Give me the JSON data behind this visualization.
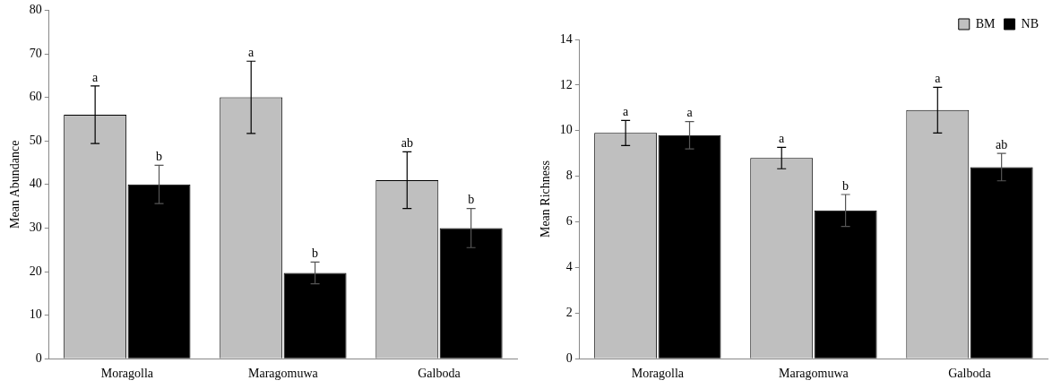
{
  "chart_data": [
    {
      "type": "bar",
      "ylabel": "Mean Abundance",
      "categories": [
        "Moragolla",
        "Maragomuwa",
        "Galboda"
      ],
      "ylim": [
        0,
        80
      ],
      "yticks": [
        0,
        10,
        20,
        30,
        40,
        50,
        60,
        70,
        80
      ],
      "grid": false,
      "legend": false,
      "series": [
        {
          "color": "#bfbfbf",
          "values": [
            56,
            60,
            41
          ],
          "errors": [
            6.6,
            8.3,
            6.5
          ],
          "value_labels": [
            "a",
            "a",
            "ab"
          ]
        },
        {
          "color": "#000000",
          "values": [
            40,
            19.7,
            30
          ],
          "errors": [
            4.4,
            2.5,
            4.5
          ],
          "value_labels": [
            "b",
            "b",
            "b"
          ]
        }
      ]
    },
    {
      "type": "bar",
      "ylabel": "Mean Richness",
      "categories": [
        "Moragolla",
        "Maragomuwa",
        "Galboda"
      ],
      "ylim": [
        0,
        14
      ],
      "yticks": [
        0,
        2,
        4,
        6,
        8,
        10,
        12,
        14
      ],
      "grid": false,
      "legend": "top right",
      "series": [
        {
          "name": "BM",
          "color": "#bfbfbf",
          "values": [
            9.9,
            8.8,
            10.9
          ],
          "errors": [
            0.55,
            0.47,
            1.0
          ],
          "value_labels": [
            "a",
            "a",
            "a"
          ]
        },
        {
          "name": "NB",
          "color": "#000000",
          "values": [
            9.8,
            6.5,
            8.4
          ],
          "errors": [
            0.6,
            0.7,
            0.6
          ],
          "value_labels": [
            "a",
            "b",
            "ab"
          ]
        }
      ]
    }
  ]
}
